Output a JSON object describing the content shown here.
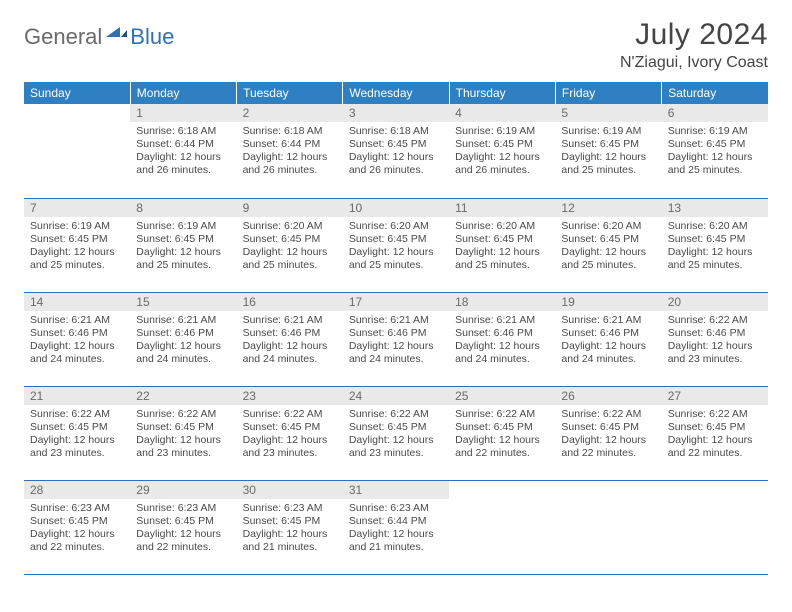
{
  "brand": {
    "general": "General",
    "blue": "Blue"
  },
  "title": "July 2024",
  "location": "N'Ziagui, Ivory Coast",
  "colors": {
    "header_bg": "#2f80c3",
    "header_text": "#ffffff",
    "daynum_bg": "#e9e9e9",
    "daynum_text": "#6a6a6a",
    "rule": "#2f71b8",
    "body_text": "#4a4a4a",
    "brand_gray": "#6a6a6a",
    "brand_blue": "#2f71b8"
  },
  "day_headers": [
    "Sunday",
    "Monday",
    "Tuesday",
    "Wednesday",
    "Thursday",
    "Friday",
    "Saturday"
  ],
  "weeks": [
    [
      {
        "n": "",
        "sunrise": "",
        "sunset": "",
        "daylight": ""
      },
      {
        "n": "1",
        "sunrise": "Sunrise: 6:18 AM",
        "sunset": "Sunset: 6:44 PM",
        "daylight": "Daylight: 12 hours and 26 minutes."
      },
      {
        "n": "2",
        "sunrise": "Sunrise: 6:18 AM",
        "sunset": "Sunset: 6:44 PM",
        "daylight": "Daylight: 12 hours and 26 minutes."
      },
      {
        "n": "3",
        "sunrise": "Sunrise: 6:18 AM",
        "sunset": "Sunset: 6:45 PM",
        "daylight": "Daylight: 12 hours and 26 minutes."
      },
      {
        "n": "4",
        "sunrise": "Sunrise: 6:19 AM",
        "sunset": "Sunset: 6:45 PM",
        "daylight": "Daylight: 12 hours and 26 minutes."
      },
      {
        "n": "5",
        "sunrise": "Sunrise: 6:19 AM",
        "sunset": "Sunset: 6:45 PM",
        "daylight": "Daylight: 12 hours and 25 minutes."
      },
      {
        "n": "6",
        "sunrise": "Sunrise: 6:19 AM",
        "sunset": "Sunset: 6:45 PM",
        "daylight": "Daylight: 12 hours and 25 minutes."
      }
    ],
    [
      {
        "n": "7",
        "sunrise": "Sunrise: 6:19 AM",
        "sunset": "Sunset: 6:45 PM",
        "daylight": "Daylight: 12 hours and 25 minutes."
      },
      {
        "n": "8",
        "sunrise": "Sunrise: 6:19 AM",
        "sunset": "Sunset: 6:45 PM",
        "daylight": "Daylight: 12 hours and 25 minutes."
      },
      {
        "n": "9",
        "sunrise": "Sunrise: 6:20 AM",
        "sunset": "Sunset: 6:45 PM",
        "daylight": "Daylight: 12 hours and 25 minutes."
      },
      {
        "n": "10",
        "sunrise": "Sunrise: 6:20 AM",
        "sunset": "Sunset: 6:45 PM",
        "daylight": "Daylight: 12 hours and 25 minutes."
      },
      {
        "n": "11",
        "sunrise": "Sunrise: 6:20 AM",
        "sunset": "Sunset: 6:45 PM",
        "daylight": "Daylight: 12 hours and 25 minutes."
      },
      {
        "n": "12",
        "sunrise": "Sunrise: 6:20 AM",
        "sunset": "Sunset: 6:45 PM",
        "daylight": "Daylight: 12 hours and 25 minutes."
      },
      {
        "n": "13",
        "sunrise": "Sunrise: 6:20 AM",
        "sunset": "Sunset: 6:45 PM",
        "daylight": "Daylight: 12 hours and 25 minutes."
      }
    ],
    [
      {
        "n": "14",
        "sunrise": "Sunrise: 6:21 AM",
        "sunset": "Sunset: 6:46 PM",
        "daylight": "Daylight: 12 hours and 24 minutes."
      },
      {
        "n": "15",
        "sunrise": "Sunrise: 6:21 AM",
        "sunset": "Sunset: 6:46 PM",
        "daylight": "Daylight: 12 hours and 24 minutes."
      },
      {
        "n": "16",
        "sunrise": "Sunrise: 6:21 AM",
        "sunset": "Sunset: 6:46 PM",
        "daylight": "Daylight: 12 hours and 24 minutes."
      },
      {
        "n": "17",
        "sunrise": "Sunrise: 6:21 AM",
        "sunset": "Sunset: 6:46 PM",
        "daylight": "Daylight: 12 hours and 24 minutes."
      },
      {
        "n": "18",
        "sunrise": "Sunrise: 6:21 AM",
        "sunset": "Sunset: 6:46 PM",
        "daylight": "Daylight: 12 hours and 24 minutes."
      },
      {
        "n": "19",
        "sunrise": "Sunrise: 6:21 AM",
        "sunset": "Sunset: 6:46 PM",
        "daylight": "Daylight: 12 hours and 24 minutes."
      },
      {
        "n": "20",
        "sunrise": "Sunrise: 6:22 AM",
        "sunset": "Sunset: 6:46 PM",
        "daylight": "Daylight: 12 hours and 23 minutes."
      }
    ],
    [
      {
        "n": "21",
        "sunrise": "Sunrise: 6:22 AM",
        "sunset": "Sunset: 6:45 PM",
        "daylight": "Daylight: 12 hours and 23 minutes."
      },
      {
        "n": "22",
        "sunrise": "Sunrise: 6:22 AM",
        "sunset": "Sunset: 6:45 PM",
        "daylight": "Daylight: 12 hours and 23 minutes."
      },
      {
        "n": "23",
        "sunrise": "Sunrise: 6:22 AM",
        "sunset": "Sunset: 6:45 PM",
        "daylight": "Daylight: 12 hours and 23 minutes."
      },
      {
        "n": "24",
        "sunrise": "Sunrise: 6:22 AM",
        "sunset": "Sunset: 6:45 PM",
        "daylight": "Daylight: 12 hours and 23 minutes."
      },
      {
        "n": "25",
        "sunrise": "Sunrise: 6:22 AM",
        "sunset": "Sunset: 6:45 PM",
        "daylight": "Daylight: 12 hours and 22 minutes."
      },
      {
        "n": "26",
        "sunrise": "Sunrise: 6:22 AM",
        "sunset": "Sunset: 6:45 PM",
        "daylight": "Daylight: 12 hours and 22 minutes."
      },
      {
        "n": "27",
        "sunrise": "Sunrise: 6:22 AM",
        "sunset": "Sunset: 6:45 PM",
        "daylight": "Daylight: 12 hours and 22 minutes."
      }
    ],
    [
      {
        "n": "28",
        "sunrise": "Sunrise: 6:23 AM",
        "sunset": "Sunset: 6:45 PM",
        "daylight": "Daylight: 12 hours and 22 minutes."
      },
      {
        "n": "29",
        "sunrise": "Sunrise: 6:23 AM",
        "sunset": "Sunset: 6:45 PM",
        "daylight": "Daylight: 12 hours and 22 minutes."
      },
      {
        "n": "30",
        "sunrise": "Sunrise: 6:23 AM",
        "sunset": "Sunset: 6:45 PM",
        "daylight": "Daylight: 12 hours and 21 minutes."
      },
      {
        "n": "31",
        "sunrise": "Sunrise: 6:23 AM",
        "sunset": "Sunset: 6:44 PM",
        "daylight": "Daylight: 12 hours and 21 minutes."
      },
      {
        "n": "",
        "sunrise": "",
        "sunset": "",
        "daylight": ""
      },
      {
        "n": "",
        "sunrise": "",
        "sunset": "",
        "daylight": ""
      },
      {
        "n": "",
        "sunrise": "",
        "sunset": "",
        "daylight": ""
      }
    ]
  ]
}
